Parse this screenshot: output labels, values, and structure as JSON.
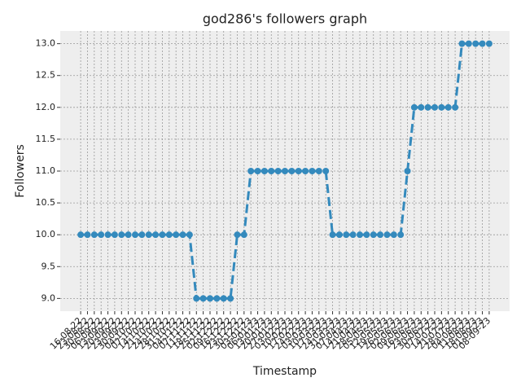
{
  "chart_data": {
    "type": "line",
    "title": "god286's followers graph",
    "xlabel": "Timestamp",
    "ylabel": "Followers",
    "categories": [
      "16-08-22",
      "23-08-22",
      "30-08-22",
      "06-09-22",
      "13-09-22",
      "20-09-22",
      "23-09-22",
      "30-09-22",
      "04-10-22",
      "07-10-22",
      "14-10-22",
      "21-10-22",
      "24-10-22",
      "28-10-22",
      "31-10-22",
      "04-11-22",
      "07-11-22",
      "11-11-22",
      "18-11-22",
      "25-11-22",
      "02-12-22",
      "09-12-22",
      "16-12-22",
      "23-12-22",
      "30-12-22",
      "03-01-23",
      "06-01-23",
      "13-01-23",
      "20-01-23",
      "27-01-23",
      "03-02-23",
      "10-02-23",
      "17-02-23",
      "24-02-23",
      "03-03-23",
      "10-03-23",
      "17-03-23",
      "24-03-23",
      "31-03-23",
      "07-04-23",
      "14-04-23",
      "21-04-23",
      "28-04-23",
      "05-05-23",
      "12-05-23",
      "19-05-23",
      "26-05-23",
      "02-06-23",
      "09-06-23",
      "16-06-23",
      "23-06-23",
      "30-06-23",
      "07-07-23",
      "14-07-23",
      "21-07-23",
      "28-07-23",
      "04-08-23",
      "11-08-23",
      "18-08-23",
      "01-09-23",
      "08-09-23"
    ],
    "values": [
      10,
      10,
      10,
      10,
      10,
      10,
      10,
      10,
      10,
      10,
      10,
      10,
      10,
      10,
      10,
      10,
      10,
      9,
      9,
      9,
      9,
      9,
      9,
      10,
      10,
      11,
      11,
      11,
      11,
      11,
      11,
      11,
      11,
      11,
      11,
      11,
      11,
      10,
      10,
      10,
      10,
      10,
      10,
      10,
      10,
      10,
      10,
      10,
      11,
      12,
      12,
      12,
      12,
      12,
      12,
      12,
      13,
      13,
      13,
      13,
      13
    ],
    "color": "#348ABD",
    "ylim": [
      8.8,
      13.2
    ],
    "yticks": [
      {
        "value": 9,
        "label": "9.0"
      },
      9.5,
      {
        "value": 10,
        "label": "10.0"
      },
      10.5,
      {
        "value": 11,
        "label": "11.0"
      },
      11.5,
      {
        "value": 12,
        "label": "12.0"
      },
      12.5,
      {
        "value": 13,
        "label": "13.0"
      }
    ],
    "grid": true
  }
}
